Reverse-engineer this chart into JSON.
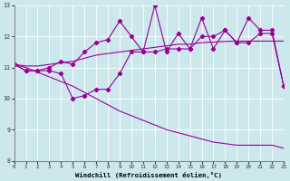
{
  "xlabel": "Windchill (Refroidissement éolien,°C)",
  "bg_color": "#cce8ec",
  "line_color": "#990099",
  "x_hours": [
    0,
    1,
    2,
    3,
    4,
    5,
    6,
    7,
    8,
    9,
    10,
    11,
    12,
    13,
    14,
    15,
    16,
    17,
    18,
    19,
    20,
    21,
    22,
    23
  ],
  "series_zigzag_high": [
    11.1,
    10.9,
    10.9,
    11.0,
    11.2,
    11.1,
    11.5,
    11.8,
    11.9,
    12.5,
    12.0,
    11.5,
    13.0,
    11.5,
    12.1,
    11.6,
    12.6,
    11.6,
    12.2,
    11.8,
    12.6,
    12.2,
    12.2,
    10.4
  ],
  "series_zigzag_low": [
    11.1,
    10.9,
    10.9,
    10.9,
    10.8,
    10.0,
    10.1,
    10.3,
    10.3,
    10.8,
    11.5,
    11.5,
    11.5,
    11.6,
    11.6,
    11.6,
    12.0,
    12.0,
    12.2,
    11.8,
    11.8,
    12.1,
    12.1,
    10.4
  ],
  "series_smooth_upper": [
    11.1,
    11.05,
    11.05,
    11.1,
    11.15,
    11.2,
    11.3,
    11.4,
    11.45,
    11.5,
    11.55,
    11.6,
    11.65,
    11.7,
    11.75,
    11.75,
    11.8,
    11.82,
    11.84,
    11.85,
    11.85,
    11.85,
    11.85,
    11.85
  ],
  "series_smooth_lower": [
    11.1,
    11.0,
    10.85,
    10.7,
    10.55,
    10.4,
    10.2,
    10.0,
    9.8,
    9.6,
    9.45,
    9.3,
    9.15,
    9.0,
    8.9,
    8.8,
    8.7,
    8.6,
    8.55,
    8.5,
    8.5,
    8.5,
    8.5,
    8.4
  ],
  "ylim": [
    8,
    13
  ],
  "yticks": [
    8,
    9,
    10,
    11,
    12,
    13
  ],
  "xlim": [
    0,
    23
  ]
}
